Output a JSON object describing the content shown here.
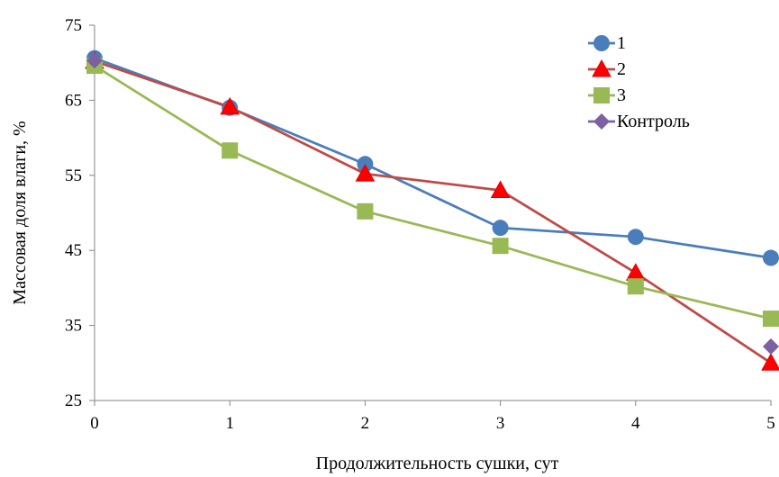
{
  "chart_data": {
    "type": "line",
    "xlabel": "Продолжительность сушки, сут",
    "ylabel": "Массовая доля влаги, %",
    "x": [
      0,
      1,
      2,
      3,
      4,
      5
    ],
    "xlim": [
      0,
      5
    ],
    "ylim": [
      25,
      75
    ],
    "yticks": [
      25,
      35,
      45,
      55,
      65,
      75
    ],
    "grid": false,
    "legend_position": "top-right",
    "series": [
      {
        "name": "1",
        "color": "#4a7ebb",
        "marker": "circle",
        "x": [
          0,
          1,
          2,
          3,
          4,
          5
        ],
        "values": [
          70.6,
          64.0,
          56.5,
          48.0,
          46.8,
          44.0
        ]
      },
      {
        "name": "2",
        "color": "#be4b48",
        "marker": "triangle",
        "x": [
          0,
          1,
          2,
          3,
          4,
          5
        ],
        "values": [
          70.2,
          64.1,
          55.2,
          53.0,
          42.0,
          30.0
        ]
      },
      {
        "name": "3",
        "color": "#98b954",
        "marker": "square",
        "x": [
          0,
          1,
          2,
          3,
          4,
          5
        ],
        "values": [
          69.6,
          58.3,
          50.2,
          45.6,
          40.2,
          35.9
        ]
      },
      {
        "name": "Контроль",
        "color": "#7d60a0",
        "marker": "diamond",
        "x": [
          0,
          5
        ],
        "values": [
          70.3,
          32.2
        ]
      }
    ]
  }
}
